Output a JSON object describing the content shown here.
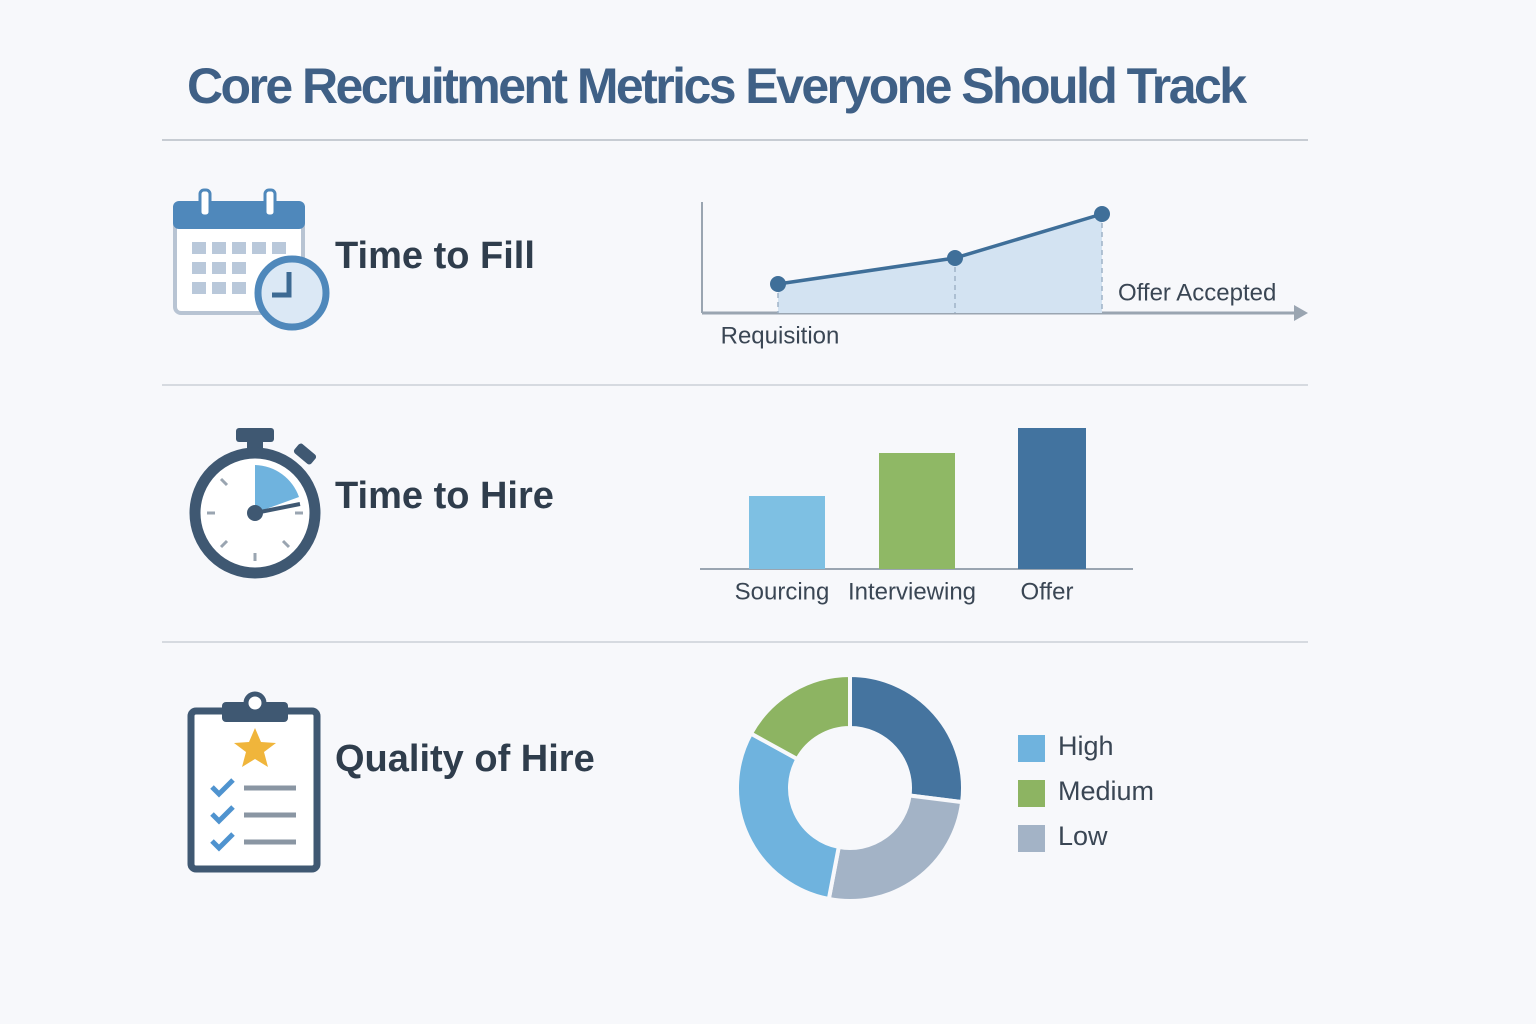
{
  "title": "Core Recruitment Metrics Everyone Should Track",
  "chart_data": [
    {
      "type": "line",
      "title": "Time to Fill",
      "categories": [
        "Requisition",
        null,
        "Offer Accepted"
      ],
      "values": [
        29,
        55,
        99
      ],
      "color": "#3f6f99",
      "ylim": [
        0,
        110
      ]
    },
    {
      "type": "bar",
      "title": "Time to Hire",
      "categories": [
        "Sourcing",
        "Interviewing",
        "Offer"
      ],
      "values": [
        73,
        116,
        141
      ],
      "colors": [
        "#7ec0e3",
        "#8fb865",
        "#42739f"
      ],
      "ylim": [
        0,
        150
      ]
    },
    {
      "type": "pie",
      "title": "Quality of Hire",
      "categories": [
        null,
        "Low",
        "High",
        "Medium"
      ],
      "values": [
        27,
        26,
        30,
        17
      ],
      "colors": [
        "#45749f",
        "#a3b3c6",
        "#6fb3de",
        "#8db462"
      ]
    }
  ]
}
